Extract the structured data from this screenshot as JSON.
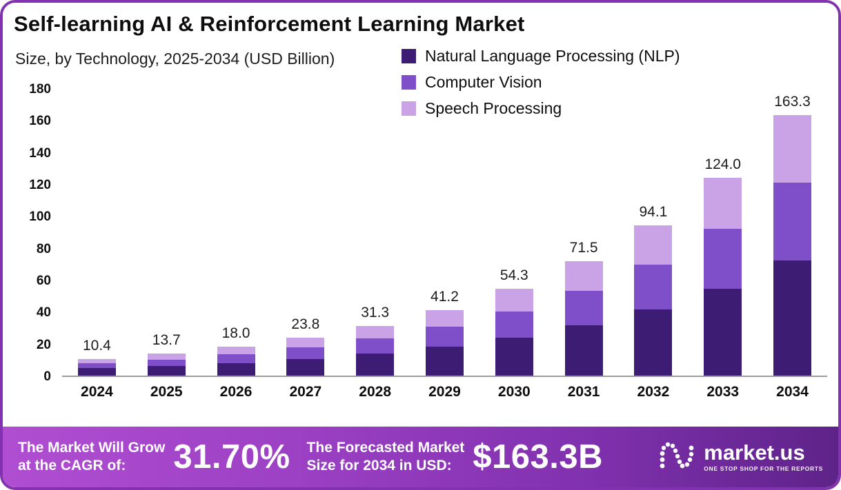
{
  "page": {
    "title": "Self-learning AI & Reinforcement Learning Market",
    "subtitle": "Size, by Technology, 2025-2034 (USD Billion)"
  },
  "chart_data": {
    "type": "bar",
    "stacked": true,
    "title": "Self-learning AI & Reinforcement Learning Market Size, by Technology, 2025-2034 (USD Billion)",
    "categories": [
      "2024",
      "2025",
      "2026",
      "2027",
      "2028",
      "2029",
      "2030",
      "2031",
      "2032",
      "2033",
      "2034"
    ],
    "totals": [
      10.4,
      13.7,
      18.0,
      23.8,
      31.3,
      41.2,
      54.3,
      71.5,
      94.1,
      124.0,
      163.3
    ],
    "total_labels": [
      "10.4",
      "13.7",
      "18.0",
      "23.8",
      "31.3",
      "41.2",
      "54.3",
      "71.5",
      "94.1",
      "124.0",
      "163.3"
    ],
    "series": [
      {
        "name": "Natural Language Processing (NLP)",
        "color": "#3d1d73",
        "values": [
          4.6,
          6.0,
          7.9,
          10.5,
          13.8,
          18.1,
          23.9,
          31.5,
          41.4,
          54.6,
          71.9
        ]
      },
      {
        "name": "Computer Vision",
        "color": "#7e4fc8",
        "values": [
          3.1,
          4.1,
          5.4,
          7.1,
          9.4,
          12.4,
          16.3,
          21.4,
          28.2,
          37.2,
          49.0
        ]
      },
      {
        "name": "Speech Processing",
        "color": "#c9a3e6",
        "values": [
          2.7,
          3.6,
          4.7,
          6.2,
          8.1,
          10.7,
          14.1,
          18.6,
          24.5,
          32.2,
          42.4
        ]
      }
    ],
    "xlabel": "",
    "ylabel": "",
    "ylim": [
      0,
      180
    ],
    "yticks": [
      0,
      20,
      40,
      60,
      80,
      100,
      120,
      140,
      160,
      180
    ],
    "grid": false,
    "legend_position": "top-right"
  },
  "banner": {
    "left_label_line1": "The Market Will Grow",
    "left_label_line2": "at the CAGR of:",
    "cagr_value": "31.70%",
    "mid_label_line1": "The Forecasted Market",
    "mid_label_line2": "Size for 2034 in USD:",
    "forecast_value": "$163.3B",
    "brand": "market.us",
    "brand_tagline": "ONE STOP SHOP FOR THE REPORTS"
  },
  "colors": {
    "frame_border": "#8232b0",
    "banner_gradient_start": "#b04ed1",
    "banner_gradient_end": "#5e2389",
    "axis_line": "#9b9b9b"
  }
}
